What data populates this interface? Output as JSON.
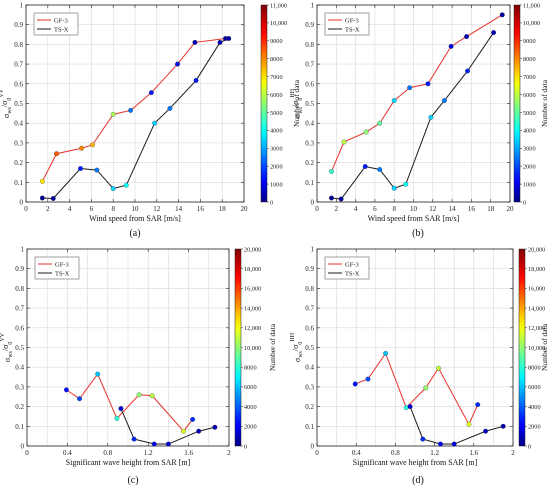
{
  "chart_data": [
    {
      "type": "line",
      "panel_label": "(a)",
      "xlabel": "Wind speed from SAR [m/s]",
      "ylabel_main": "σ",
      "ylabel_sub": "ws",
      "ylabel_mid": "/σ",
      "ylabel_sub2": "0",
      "ylabel_sup": "VV",
      "xlim": [
        0,
        20
      ],
      "ylim": [
        0,
        1
      ],
      "xticks": [
        "0",
        "2",
        "4",
        "6",
        "8",
        "10",
        "12",
        "14",
        "16",
        "18",
        "20"
      ],
      "yticks": [
        "0",
        "0.1",
        "0.2",
        "0.3",
        "0.4",
        "0.5",
        "0.6",
        "0.7",
        "0.8",
        "0.9",
        "1"
      ],
      "colorbar": {
        "label": "Number of data",
        "max": 11000,
        "ticks": [
          "0",
          "1000",
          "2000",
          "3000",
          "4000",
          "5000",
          "6000",
          "7000",
          "8000",
          "9000",
          "10,000",
          "11,000"
        ]
      },
      "legend_position": "top-left",
      "series": [
        {
          "name": "GF-3",
          "color": "#e8302a",
          "points": [
            {
              "x": 1.5,
              "y": 0.105,
              "c": 7000
            },
            {
              "x": 2.8,
              "y": 0.245,
              "c": 8500
            },
            {
              "x": 5.1,
              "y": 0.273,
              "c": 8000
            },
            {
              "x": 6.1,
              "y": 0.29,
              "c": 7500
            },
            {
              "x": 8.0,
              "y": 0.445,
              "c": 5800
            },
            {
              "x": 9.6,
              "y": 0.465,
              "c": 2500
            },
            {
              "x": 11.5,
              "y": 0.555,
              "c": 1500
            },
            {
              "x": 13.9,
              "y": 0.7,
              "c": 1000
            },
            {
              "x": 15.5,
              "y": 0.81,
              "c": 500
            },
            {
              "x": 18.3,
              "y": 0.83,
              "c": 300
            }
          ]
        },
        {
          "name": "TS-X",
          "color": "#1a1a1a",
          "points": [
            {
              "x": 1.5,
              "y": 0.02,
              "c": 200
            },
            {
              "x": 2.5,
              "y": 0.018,
              "c": 300
            },
            {
              "x": 5.0,
              "y": 0.17,
              "c": 1500
            },
            {
              "x": 6.5,
              "y": 0.162,
              "c": 2500
            },
            {
              "x": 8.0,
              "y": 0.068,
              "c": 3500
            },
            {
              "x": 9.2,
              "y": 0.085,
              "c": 4000
            },
            {
              "x": 11.8,
              "y": 0.4,
              "c": 3500
            },
            {
              "x": 13.2,
              "y": 0.475,
              "c": 2500
            },
            {
              "x": 15.6,
              "y": 0.617,
              "c": 1500
            },
            {
              "x": 17.8,
              "y": 0.81,
              "c": 500
            },
            {
              "x": 18.6,
              "y": 0.83,
              "c": 300
            }
          ]
        }
      ]
    },
    {
      "type": "line",
      "panel_label": "(b)",
      "xlabel": "Wind speed from SAR [m/s]",
      "ylabel_main": "σ",
      "ylabel_sub": "ws",
      "ylabel_mid": "/σ",
      "ylabel_sub2": "0",
      "ylabel_sup": "HH",
      "xlim": [
        0,
        20
      ],
      "ylim": [
        0,
        1
      ],
      "xticks": [
        "0",
        "2",
        "4",
        "6",
        "8",
        "10",
        "12",
        "14",
        "16",
        "18",
        "20"
      ],
      "yticks": [
        "0",
        "0.1",
        "0.2",
        "0.3",
        "0.4",
        "0.5",
        "0.6",
        "0.7",
        "0.8",
        "0.9",
        "1"
      ],
      "colorbar": {
        "label": "Number of data",
        "max": 11000,
        "ticks": [
          "0",
          "1000",
          "2000",
          "3000",
          "4000",
          "5000",
          "6000",
          "7000",
          "8000",
          "9000",
          "10,000",
          "11,000"
        ]
      },
      "legend_position": "top-left",
      "series": [
        {
          "name": "GF-3",
          "color": "#e8302a",
          "points": [
            {
              "x": 1.5,
              "y": 0.155,
              "c": 4500
            },
            {
              "x": 2.8,
              "y": 0.305,
              "c": 6000
            },
            {
              "x": 5.1,
              "y": 0.355,
              "c": 5500
            },
            {
              "x": 6.5,
              "y": 0.4,
              "c": 5000
            },
            {
              "x": 8.0,
              "y": 0.515,
              "c": 3500
            },
            {
              "x": 9.6,
              "y": 0.58,
              "c": 2500
            },
            {
              "x": 11.5,
              "y": 0.6,
              "c": 1500
            },
            {
              "x": 13.9,
              "y": 0.79,
              "c": 1000
            },
            {
              "x": 15.5,
              "y": 0.84,
              "c": 500
            },
            {
              "x": 19.2,
              "y": 0.95,
              "c": 300
            }
          ]
        },
        {
          "name": "TS-X",
          "color": "#1a1a1a",
          "points": [
            {
              "x": 1.5,
              "y": 0.02,
              "c": 200
            },
            {
              "x": 2.5,
              "y": 0.015,
              "c": 300
            },
            {
              "x": 5.0,
              "y": 0.18,
              "c": 1500
            },
            {
              "x": 6.5,
              "y": 0.165,
              "c": 2500
            },
            {
              "x": 8.0,
              "y": 0.07,
              "c": 3500
            },
            {
              "x": 9.2,
              "y": 0.09,
              "c": 4000
            },
            {
              "x": 11.8,
              "y": 0.43,
              "c": 3500
            },
            {
              "x": 13.2,
              "y": 0.515,
              "c": 2500
            },
            {
              "x": 15.6,
              "y": 0.665,
              "c": 1500
            },
            {
              "x": 18.3,
              "y": 0.86,
              "c": 500
            }
          ]
        }
      ]
    },
    {
      "type": "line",
      "panel_label": "(c)",
      "xlabel": "Significant wave height from SAR [m]",
      "ylabel_main": "σ",
      "ylabel_sub": "ws",
      "ylabel_mid": "/σ",
      "ylabel_sub2": "0",
      "ylabel_sup": "VV",
      "xlim": [
        0,
        2
      ],
      "ylim": [
        0,
        1
      ],
      "xticks": [
        "0",
        "0.4",
        "0.8",
        "1.2",
        "1.6",
        "2"
      ],
      "xtick_values": [
        0,
        0.4,
        0.8,
        1.2,
        1.6,
        2
      ],
      "xminor_values": [
        0.2,
        0.6,
        1.0,
        1.4,
        1.8
      ],
      "yticks": [
        "0",
        "0.1",
        "0.2",
        "0.3",
        "0.4",
        "0.5",
        "0.6",
        "0.7",
        "0.8",
        "0.9",
        "1"
      ],
      "colorbar": {
        "label": "Number of data",
        "max": 20000,
        "ticks": [
          "0",
          "2000",
          "4000",
          "6000",
          "8000",
          "10,000",
          "12,000",
          "14,000",
          "16,000",
          "18,000",
          "20,000"
        ]
      },
      "legend_position": "top-left",
      "series": [
        {
          "name": "GF-3",
          "color": "#e8302a",
          "points": [
            {
              "x": 0.39,
              "y": 0.285,
              "c": 2500
            },
            {
              "x": 0.52,
              "y": 0.24,
              "c": 3500
            },
            {
              "x": 0.7,
              "y": 0.365,
              "c": 6000
            },
            {
              "x": 0.89,
              "y": 0.14,
              "c": 8000
            },
            {
              "x": 1.11,
              "y": 0.26,
              "c": 10000
            },
            {
              "x": 1.24,
              "y": 0.255,
              "c": 11000
            },
            {
              "x": 1.55,
              "y": 0.075,
              "c": 11500
            },
            {
              "x": 1.64,
              "y": 0.135,
              "c": 3000
            }
          ]
        },
        {
          "name": "TS-X",
          "color": "#1a1a1a",
          "points": [
            {
              "x": 0.93,
              "y": 0.19,
              "c": 1500
            },
            {
              "x": 1.06,
              "y": 0.035,
              "c": 3000
            },
            {
              "x": 1.26,
              "y": 0.01,
              "c": 2000
            },
            {
              "x": 1.4,
              "y": 0.01,
              "c": 1500
            },
            {
              "x": 1.7,
              "y": 0.075,
              "c": 1000
            },
            {
              "x": 1.86,
              "y": 0.095,
              "c": 800
            }
          ]
        }
      ]
    },
    {
      "type": "line",
      "panel_label": "(d)",
      "xlabel": "Significant wave height from SAR [m]",
      "ylabel_main": "σ",
      "ylabel_sub": "ws",
      "ylabel_mid": "/σ",
      "ylabel_sub2": "0",
      "ylabel_sup": "HH",
      "xlim": [
        0,
        2
      ],
      "ylim": [
        0,
        1
      ],
      "xticks": [
        "0",
        "0.4",
        "0.8",
        "1.2",
        "1.6",
        "2"
      ],
      "xtick_values": [
        0,
        0.4,
        0.8,
        1.2,
        1.6,
        2
      ],
      "xminor_values": [
        0.2,
        0.6,
        1.0,
        1.4,
        1.8
      ],
      "yticks": [
        "0",
        "0.1",
        "0.2",
        "0.3",
        "0.4",
        "0.5",
        "0.6",
        "0.7",
        "0.8",
        "0.9",
        "1"
      ],
      "colorbar": {
        "label": "Number of data",
        "max": 20000,
        "ticks": [
          "0",
          "2000",
          "4000",
          "6000",
          "8000",
          "10,000",
          "12,000",
          "14,000",
          "16,000",
          "18,000",
          "20,000"
        ]
      },
      "legend_position": "top-left",
      "series": [
        {
          "name": "GF-3",
          "color": "#e8302a",
          "points": [
            {
              "x": 0.39,
              "y": 0.315,
              "c": 2500
            },
            {
              "x": 0.52,
              "y": 0.34,
              "c": 3500
            },
            {
              "x": 0.7,
              "y": 0.47,
              "c": 6000
            },
            {
              "x": 0.91,
              "y": 0.195,
              "c": 8000
            },
            {
              "x": 1.11,
              "y": 0.295,
              "c": 10000
            },
            {
              "x": 1.24,
              "y": 0.395,
              "c": 11000
            },
            {
              "x": 1.55,
              "y": 0.11,
              "c": 11500
            },
            {
              "x": 1.64,
              "y": 0.21,
              "c": 3000
            }
          ]
        },
        {
          "name": "TS-X",
          "color": "#1a1a1a",
          "points": [
            {
              "x": 0.95,
              "y": 0.2,
              "c": 1500
            },
            {
              "x": 1.08,
              "y": 0.035,
              "c": 3000
            },
            {
              "x": 1.26,
              "y": 0.01,
              "c": 2000
            },
            {
              "x": 1.4,
              "y": 0.01,
              "c": 1500
            },
            {
              "x": 1.72,
              "y": 0.075,
              "c": 1000
            },
            {
              "x": 1.9,
              "y": 0.1,
              "c": 800
            }
          ]
        }
      ]
    }
  ]
}
